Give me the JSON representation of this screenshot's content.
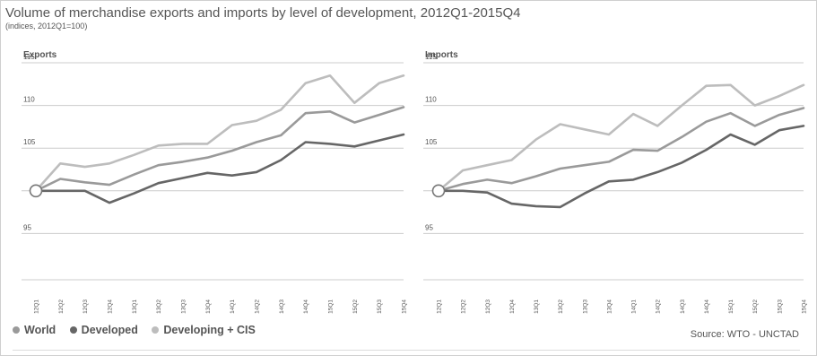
{
  "title": "Volume of merchandise exports and imports by level of development, 2012Q1-2015Q4",
  "subtitle": "(indices, 2012Q1=100)",
  "source": "Source:  WTO - UNCTAD",
  "colors": {
    "world": "#9a9a9a",
    "developed": "#666666",
    "developing": "#bdbdbd",
    "grid": "#cccccc",
    "text": "#555555"
  },
  "legend": [
    {
      "key": "world",
      "label": "World"
    },
    {
      "key": "developed",
      "label": "Developed"
    },
    {
      "key": "developing",
      "label": "Developing + CIS"
    }
  ],
  "chart_data": [
    {
      "type": "line",
      "title": "Exports",
      "ylim": [
        90,
        115
      ],
      "yticks": [
        95,
        105,
        110,
        115
      ],
      "categories": [
        "12Q1",
        "12Q2",
        "12Q3",
        "12Q4",
        "13Q1",
        "13Q2",
        "13Q3",
        "13Q4",
        "14Q1",
        "14Q2",
        "14Q3",
        "14Q4",
        "15Q1",
        "15Q2",
        "15Q3",
        "15Q4"
      ],
      "series": [
        {
          "key": "world",
          "name": "World",
          "values": [
            100,
            101.4,
            101.0,
            100.7,
            101.9,
            103.0,
            103.4,
            103.9,
            104.7,
            105.7,
            106.5,
            109.1,
            109.3,
            108.0,
            108.9,
            109.8
          ]
        },
        {
          "key": "developed",
          "name": "Developed",
          "values": [
            100,
            100.0,
            100.0,
            98.6,
            99.7,
            100.9,
            101.5,
            102.1,
            101.8,
            102.2,
            103.6,
            105.7,
            105.5,
            105.2,
            105.9,
            106.6
          ]
        },
        {
          "key": "developing",
          "name": "Developing + CIS",
          "values": [
            100,
            103.2,
            102.8,
            103.2,
            104.2,
            105.3,
            105.5,
            105.5,
            107.7,
            108.2,
            109.5,
            112.6,
            113.5,
            110.3,
            112.6,
            113.5
          ]
        }
      ]
    },
    {
      "type": "line",
      "title": "Imports",
      "ylim": [
        90,
        115
      ],
      "yticks": [
        95,
        105,
        110,
        115
      ],
      "categories": [
        "12Q1",
        "12Q2",
        "12Q3",
        "12Q4",
        "13Q1",
        "13Q2",
        "13Q3",
        "13Q4",
        "14Q1",
        "14Q2",
        "14Q3",
        "14Q4",
        "15Q1",
        "15Q2",
        "15Q3",
        "15Q4"
      ],
      "series": [
        {
          "key": "world",
          "name": "World",
          "values": [
            100,
            100.8,
            101.3,
            100.9,
            101.7,
            102.6,
            103.0,
            103.4,
            104.8,
            104.7,
            106.3,
            108.1,
            109.1,
            107.6,
            108.9,
            109.7
          ]
        },
        {
          "key": "developed",
          "name": "Developed",
          "values": [
            100,
            100.0,
            99.8,
            98.5,
            98.2,
            98.1,
            99.7,
            101.1,
            101.3,
            102.2,
            103.3,
            104.8,
            106.6,
            105.4,
            107.1,
            107.6
          ]
        },
        {
          "key": "developing",
          "name": "Developing + CIS",
          "values": [
            100,
            102.4,
            103.0,
            103.6,
            106.0,
            107.8,
            107.2,
            106.6,
            109.0,
            107.6,
            110.0,
            112.3,
            112.4,
            110.0,
            111.1,
            112.4
          ]
        }
      ]
    }
  ]
}
